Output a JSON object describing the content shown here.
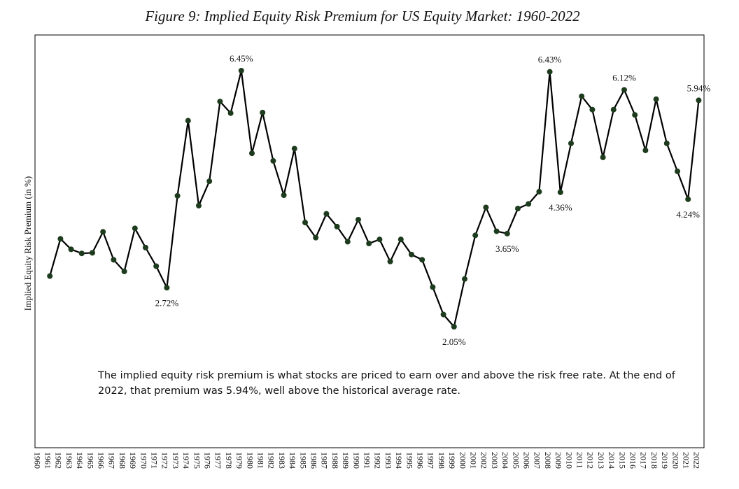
{
  "chart_data": {
    "type": "line",
    "title": "Figure 9: Implied Equity Risk Premium for US Equity Market: 1960-2022",
    "y_label": "Implied Equity Risk Premium (in %)",
    "annotation": "The implied equity risk premium is what stocks are priced to earn over and above the risk free rate. At the end of 2022, that premium was 5.94%, well above the historical average rate.",
    "color": "#000000",
    "marker_color": "#1d3b1d",
    "categories": [
      "1960",
      "1961",
      "1962",
      "1963",
      "1964",
      "1965",
      "1966",
      "1967",
      "1968",
      "1969",
      "1970",
      "1971",
      "1972",
      "1973",
      "1974",
      "1975",
      "1976",
      "1977",
      "1978",
      "1979",
      "1980",
      "1981",
      "1982",
      "1983",
      "1984",
      "1985",
      "1986",
      "1987",
      "1988",
      "1989",
      "1990",
      "1991",
      "1992",
      "1993",
      "1994",
      "1995",
      "1996",
      "1997",
      "1998",
      "1999",
      "2000",
      "2001",
      "2002",
      "2003",
      "2004",
      "2005",
      "2006",
      "2007",
      "2008",
      "2009",
      "2010",
      "2011",
      "2012",
      "2013",
      "2014",
      "2015",
      "2016",
      "2017",
      "2018",
      "2019",
      "2020",
      "2021",
      "2022"
    ],
    "values": [
      null,
      2.92,
      3.56,
      3.38,
      3.31,
      3.32,
      3.68,
      3.2,
      3.0,
      3.74,
      3.41,
      3.09,
      2.72,
      4.3,
      5.59,
      4.13,
      4.55,
      5.92,
      5.72,
      6.45,
      5.03,
      5.73,
      4.9,
      4.31,
      5.11,
      3.84,
      3.58,
      3.99,
      3.77,
      3.51,
      3.89,
      3.48,
      3.55,
      3.17,
      3.55,
      3.29,
      3.2,
      2.73,
      2.26,
      2.05,
      2.87,
      3.62,
      4.1,
      3.69,
      3.65,
      4.08,
      4.16,
      4.37,
      6.43,
      4.36,
      5.2,
      6.01,
      5.78,
      4.96,
      5.78,
      6.12,
      5.69,
      5.08,
      5.96,
      5.2,
      4.72,
      4.24,
      5.94
    ],
    "value_labels": [
      null,
      null,
      null,
      null,
      null,
      null,
      null,
      null,
      null,
      null,
      null,
      null,
      "2.72%",
      null,
      null,
      null,
      null,
      null,
      null,
      "6.45%",
      null,
      null,
      null,
      null,
      null,
      null,
      null,
      null,
      null,
      null,
      null,
      null,
      null,
      null,
      null,
      null,
      null,
      null,
      null,
      "2.05%",
      null,
      null,
      null,
      null,
      "3.65%",
      null,
      null,
      null,
      "6.43%",
      "4.36%",
      null,
      null,
      null,
      null,
      null,
      "6.12%",
      null,
      null,
      null,
      null,
      null,
      "4.24%",
      "5.94%"
    ]
  }
}
